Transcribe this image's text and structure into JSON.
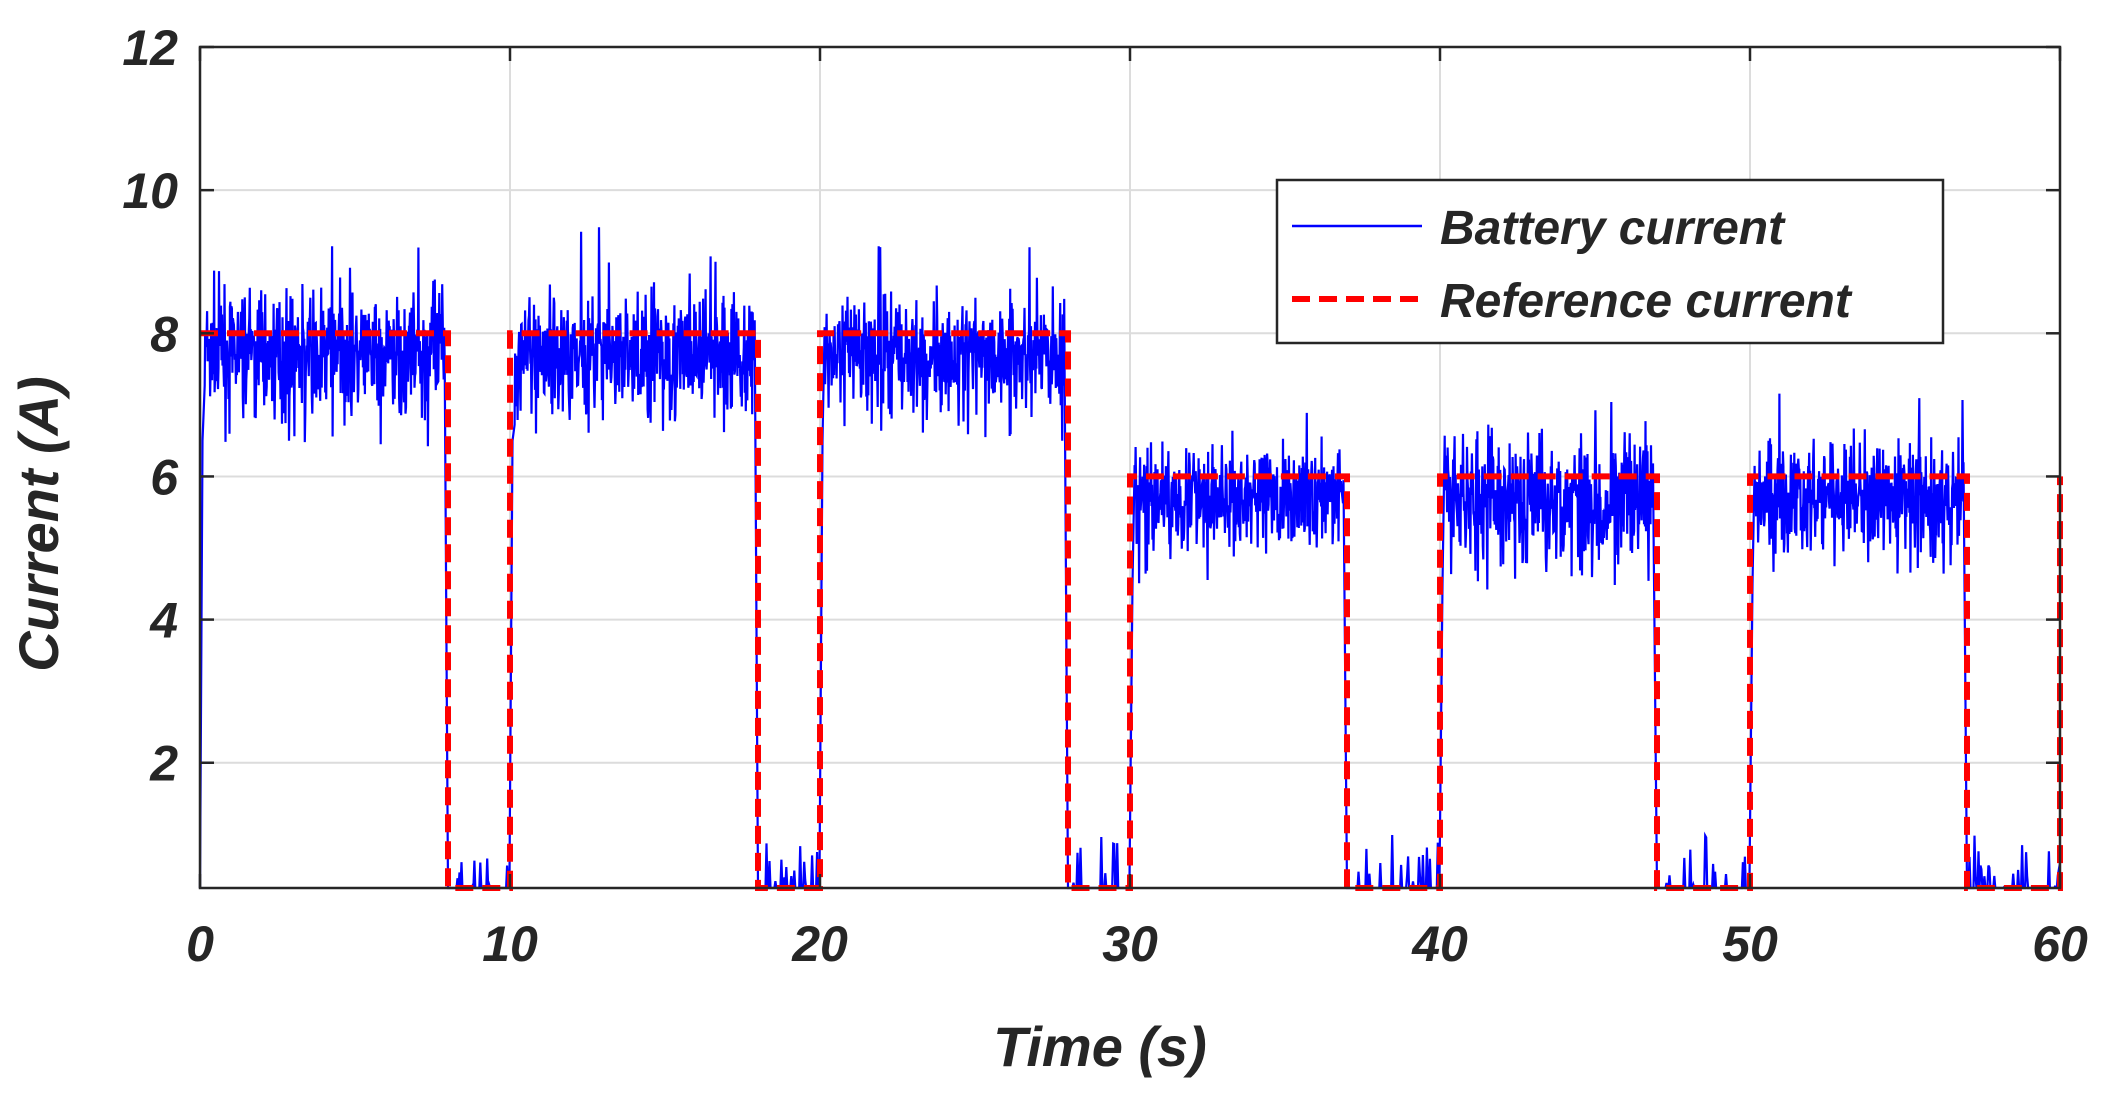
{
  "chart_data": {
    "type": "line",
    "title": "",
    "xlabel": "Time (s)",
    "ylabel": "Current (A)",
    "xlim": [
      0,
      60
    ],
    "ylim": [
      0.25,
      12
    ],
    "xticks": [
      0,
      10,
      20,
      30,
      40,
      50,
      60
    ],
    "yticks": [
      2,
      4,
      6,
      8,
      10,
      12
    ],
    "grid": true,
    "legend_position": "top-right",
    "series": [
      {
        "name": "Battery current",
        "color": "#0000ff",
        "style": "solid",
        "segments": [
          {
            "t_start": 0,
            "t_end": 7.9,
            "mean": 7.7,
            "min": 6.4,
            "max": 9.3
          },
          {
            "t_start": 10,
            "t_end": 17.9,
            "mean": 7.7,
            "min": 6.6,
            "max": 9.5
          },
          {
            "t_start": 20,
            "t_end": 27.9,
            "mean": 7.7,
            "min": 6.5,
            "max": 9.3
          },
          {
            "t_start": 30,
            "t_end": 36.9,
            "mean": 5.7,
            "min": 4.5,
            "max": 6.9
          },
          {
            "t_start": 40,
            "t_end": 46.9,
            "mean": 5.7,
            "min": 4.0,
            "max": 7.2
          },
          {
            "t_start": 50,
            "t_end": 56.9,
            "mean": 5.7,
            "min": 4.5,
            "max": 7.2
          }
        ],
        "off_level": 0.25,
        "off_max": 1.0
      },
      {
        "name": "Reference current",
        "color": "#ff0000",
        "style": "dashed",
        "x": [
          0,
          8,
          8,
          10,
          10,
          18,
          18,
          20,
          20,
          28,
          28,
          30,
          30,
          37,
          37,
          40,
          40,
          47,
          47,
          50,
          50,
          57,
          57,
          60,
          60
        ],
        "y": [
          8,
          8,
          0.25,
          0.25,
          8,
          8,
          0.25,
          0.25,
          8,
          8,
          0.25,
          0.25,
          6,
          6,
          0.25,
          0.25,
          6,
          6,
          0.25,
          0.25,
          6,
          6,
          0.25,
          0.25,
          6
        ]
      }
    ]
  }
}
